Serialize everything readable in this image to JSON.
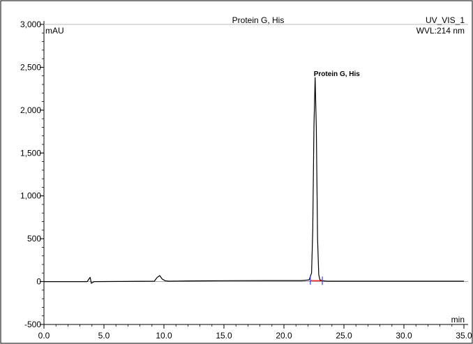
{
  "chart_data": {
    "type": "line",
    "title": "Protein G, His",
    "channel": "UV_VIS_1",
    "wavelength": "WVL:214 nm",
    "xlabel": "min",
    "ylabel": "mAU",
    "xlim": [
      0,
      35
    ],
    "ylim": [
      -500,
      3000
    ],
    "xticks": [
      0,
      5,
      10,
      15,
      20,
      25,
      30,
      35
    ],
    "xtick_labels": [
      "0.0",
      "5.0",
      "10.0",
      "15.0",
      "20.0",
      "25.0",
      "30.0",
      "35.0"
    ],
    "yticks": [
      -500,
      0,
      500,
      1000,
      1500,
      2000,
      2500,
      3000
    ],
    "ytick_labels": [
      "-500",
      "0",
      "500",
      "1,000",
      "1,500",
      "2,000",
      "2,500",
      "3,000"
    ],
    "peak_label": {
      "text": "Protein G, His",
      "x": 22.6,
      "y": 2380
    },
    "series": [
      {
        "color": "#000000",
        "x": [
          0,
          3.6,
          3.75,
          3.85,
          3.95,
          4.05,
          4.2,
          9.2,
          9.45,
          9.65,
          9.85,
          10.1,
          10.4,
          12,
          15,
          20,
          21.5,
          22.1,
          22.3,
          22.4,
          22.5,
          22.6,
          22.7,
          22.8,
          22.9,
          23.0,
          23.2,
          23.6,
          25,
          30,
          35
        ],
        "y": [
          0,
          0,
          30,
          50,
          -20,
          -10,
          0,
          5,
          50,
          70,
          30,
          10,
          5,
          8,
          10,
          12,
          12,
          20,
          100,
          600,
          1800,
          2380,
          1800,
          500,
          80,
          20,
          10,
          5,
          5,
          5,
          5
        ]
      }
    ],
    "integration_markers": [
      {
        "x": 22.2,
        "y": 12,
        "color": "#3a3aff"
      },
      {
        "x": 23.2,
        "y": 10,
        "color": "#3a3aff"
      }
    ],
    "baseline": {
      "x": [
        22.2,
        23.2
      ],
      "y": [
        12,
        10
      ],
      "color": "#ff0000"
    }
  }
}
